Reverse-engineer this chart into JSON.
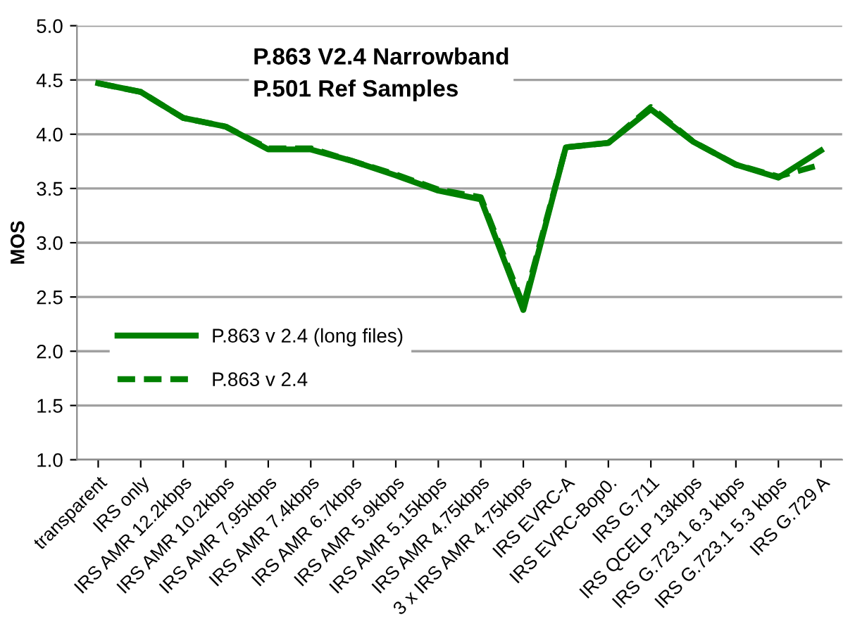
{
  "chart_data": {
    "type": "line",
    "title": "P.863 V2.4 Narrowband\nP.501 Ref Samples",
    "ylabel": "MOS",
    "categories": [
      "transparent",
      "IRS only",
      "IRS AMR 12.2kbps",
      "IRS AMR 10.2kbps",
      "IRS AMR 7.95kbps",
      "IRS AMR 7.4kbps",
      "IRS AMR 6.7kbps",
      "IRS AMR 5.9kbps",
      "IRS AMR 5.15kbps",
      "IRS AMR 4.75kbps",
      "3 x IRS AMR 4.75kbps",
      "IRS EVRC-A",
      "IRS EVRC-Bop0.",
      "IRS G.711",
      "IRS QCELP 13kbps",
      "IRS G.723.1 6.3 kbps",
      "IRS G.723.1 5.3 kbps",
      "IRS G.729 A"
    ],
    "series": [
      {
        "name": "P.863 v 2.4 (long files)",
        "color": "#008000",
        "line_style": "solid",
        "values": [
          4.47,
          4.39,
          4.15,
          4.07,
          3.86,
          3.86,
          3.75,
          3.62,
          3.48,
          3.4,
          2.38,
          3.88,
          3.92,
          4.23,
          3.93,
          3.72,
          3.6,
          3.85
        ]
      },
      {
        "name": "P.863 v 2.4",
        "color": "#008000",
        "line_style": "dashed",
        "values": [
          4.47,
          4.39,
          4.15,
          4.07,
          3.87,
          3.87,
          3.75,
          3.63,
          3.49,
          3.42,
          2.42,
          3.88,
          3.92,
          4.25,
          3.93,
          3.72,
          3.61,
          3.72
        ]
      }
    ],
    "ylim": [
      1.0,
      5.0
    ],
    "yticks": [
      {
        "value": 1.0,
        "label": "1.0"
      },
      {
        "value": 1.5,
        "label": "1.5"
      },
      {
        "value": 2.0,
        "label": "2.0"
      },
      {
        "value": 2.5,
        "label": "2.5"
      },
      {
        "value": 3.0,
        "label": "3.0"
      },
      {
        "value": 3.5,
        "label": "3.5"
      },
      {
        "value": 4.0,
        "label": "4.0"
      },
      {
        "value": 4.5,
        "label": "4.5"
      },
      {
        "value": 5.0,
        "label": "5.0"
      }
    ],
    "grid": "y",
    "legend": "bottom left",
    "marker": "none"
  }
}
